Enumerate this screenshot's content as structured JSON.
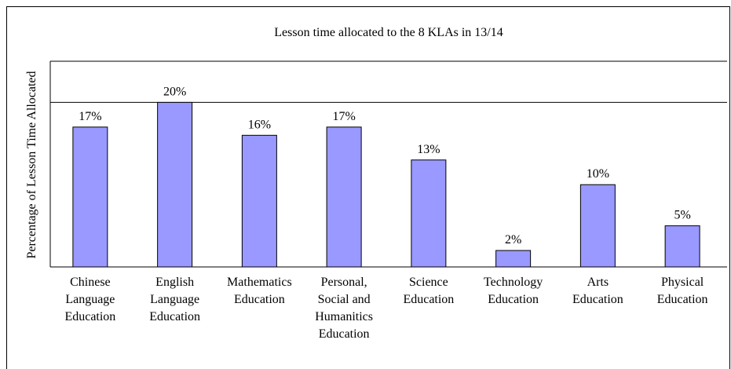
{
  "chart_data": {
    "type": "bar",
    "title": "Lesson time allocated to the 8 KLAs in 13/14",
    "y_label": "Percentage of Lesson Time Allocated",
    "categories": [
      "Chinese\nLanguage\nEducation",
      "English\nLanguage\nEducation",
      "Mathematics\nEducation",
      "Personal,\nSocial and\nHumanitics\nEducation",
      "Science\nEducation",
      "Technology\nEducation",
      "Arts\nEducation",
      "Physical\nEducation"
    ],
    "values": [
      17,
      20,
      16,
      17,
      13,
      2,
      10,
      5
    ],
    "value_labels": [
      "17%",
      "20%",
      "16%",
      "17%",
      "13%",
      "2%",
      "10%",
      "5%"
    ],
    "color": "#9999ff",
    "ylim": [
      0,
      25
    ],
    "gridlines": [
      20
    ]
  }
}
